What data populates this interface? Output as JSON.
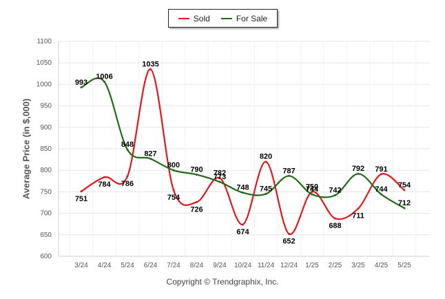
{
  "legend": {
    "sold_label": "Sold",
    "forsale_label": "For Sale"
  },
  "copyright": "Copyright © Trendgraphix, Inc.",
  "colors": {
    "sold": "#e8141b",
    "for_sale": "#1f6b14",
    "grid": "#e6e6e6"
  },
  "chart_data": {
    "type": "line",
    "title": "",
    "xlabel": "",
    "ylabel": "Average Price (in $,000)",
    "ylim": [
      600,
      1100
    ],
    "yticks": [
      600,
      650,
      700,
      750,
      800,
      850,
      900,
      950,
      1000,
      1050,
      1100
    ],
    "grid": true,
    "legend_position": "top-center",
    "categories": [
      "3/24",
      "4/24",
      "5/24",
      "6/24",
      "7/24",
      "8/24",
      "9/24",
      "10/24",
      "11/24",
      "12/24",
      "1/25",
      "2/25",
      "3/25",
      "4/25",
      "5/25"
    ],
    "series": [
      {
        "name": "Sold",
        "values": [
          751,
          784,
          786,
          1035,
          754,
          726,
          782,
          674,
          820,
          652,
          750,
          688,
          711,
          791,
          754
        ]
      },
      {
        "name": "For Sale",
        "values": [
          993,
          1006,
          848,
          827,
          800,
          790,
          773,
          748,
          745,
          787,
          744,
          742,
          792,
          744,
          712
        ]
      }
    ]
  }
}
